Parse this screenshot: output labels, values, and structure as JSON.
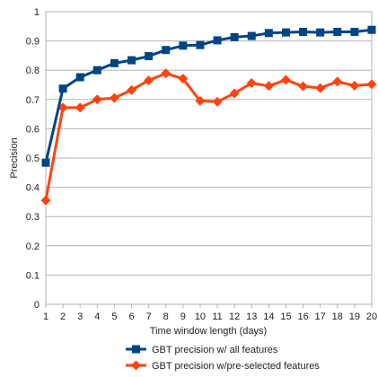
{
  "chart_data": {
    "type": "line",
    "title": "",
    "xlabel": "Time window length (days)",
    "ylabel": "Precision",
    "x": [
      1,
      2,
      3,
      4,
      5,
      6,
      7,
      8,
      9,
      10,
      11,
      12,
      13,
      14,
      15,
      16,
      17,
      18,
      19,
      20
    ],
    "xlim": [
      1,
      20
    ],
    "ylim": [
      0,
      1
    ],
    "yticks": [
      "0",
      "0.1",
      "0.2",
      "0.3",
      "0.4",
      "0.5",
      "0.6",
      "0.7",
      "0.8",
      "0.9",
      "1"
    ],
    "xticks": [
      "1",
      "2",
      "3",
      "4",
      "5",
      "6",
      "7",
      "8",
      "9",
      "10",
      "11",
      "12",
      "13",
      "14",
      "15",
      "16",
      "17",
      "18",
      "19",
      "20"
    ],
    "grid": "horizontal",
    "legend_position": "bottom",
    "series": [
      {
        "name": "GBT precision w/ all features",
        "color": "#004586",
        "marker": "square",
        "values": [
          0.484,
          0.737,
          0.776,
          0.8,
          0.824,
          0.834,
          0.848,
          0.869,
          0.884,
          0.886,
          0.902,
          0.913,
          0.917,
          0.927,
          0.929,
          0.931,
          0.929,
          0.931,
          0.931,
          0.938
        ]
      },
      {
        "name": "GBT precision w/pre-selected features",
        "color": "#ff420e",
        "marker": "diamond",
        "values": [
          0.355,
          0.672,
          0.672,
          0.7,
          0.705,
          0.732,
          0.765,
          0.789,
          0.771,
          0.695,
          0.692,
          0.721,
          0.756,
          0.746,
          0.767,
          0.745,
          0.739,
          0.761,
          0.747,
          0.752
        ]
      }
    ]
  }
}
